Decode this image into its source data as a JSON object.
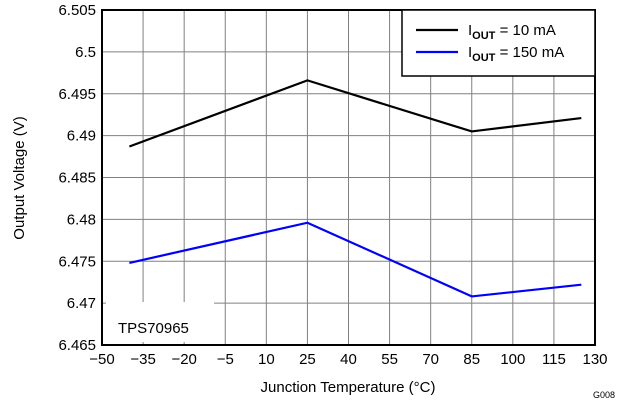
{
  "chart_data": {
    "type": "line",
    "title": "",
    "xlabel": "Junction Temperature (°C)",
    "ylabel": "Output Voltage (V)",
    "xlim": [
      -50,
      130
    ],
    "ylim": [
      6.465,
      6.505
    ],
    "x_ticks": [
      "−50",
      "−35",
      "−20",
      "−5",
      "10",
      "25",
      "40",
      "55",
      "70",
      "85",
      "100",
      "115",
      "130"
    ],
    "x_tick_values": [
      -50,
      -35,
      -20,
      -5,
      10,
      25,
      40,
      55,
      70,
      85,
      100,
      115,
      130
    ],
    "y_ticks": [
      "6.465",
      "6.47",
      "6.475",
      "6.48",
      "6.485",
      "6.49",
      "6.495",
      "6.5",
      "6.505"
    ],
    "y_tick_values": [
      6.465,
      6.47,
      6.475,
      6.48,
      6.485,
      6.49,
      6.495,
      6.5,
      6.505
    ],
    "grid": true,
    "legend_position": "top-right",
    "series": [
      {
        "name_prefix": "I",
        "name_sub": "OUT",
        "name_suffix": " = 10 mA",
        "color": "#000000",
        "points": [
          [
            -40,
            6.4887
          ],
          [
            25,
            6.4966
          ],
          [
            85,
            6.4905
          ],
          [
            125,
            6.4921
          ]
        ]
      },
      {
        "name_prefix": "I",
        "name_sub": "OUT",
        "name_suffix": " = 150 mA",
        "color": "#0000ff",
        "points": [
          [
            -40,
            6.4748
          ],
          [
            25,
            6.4796
          ],
          [
            85,
            6.4708
          ],
          [
            125,
            6.4722
          ]
        ]
      }
    ],
    "annotation": "TPS70965",
    "figure_id": "G008"
  }
}
